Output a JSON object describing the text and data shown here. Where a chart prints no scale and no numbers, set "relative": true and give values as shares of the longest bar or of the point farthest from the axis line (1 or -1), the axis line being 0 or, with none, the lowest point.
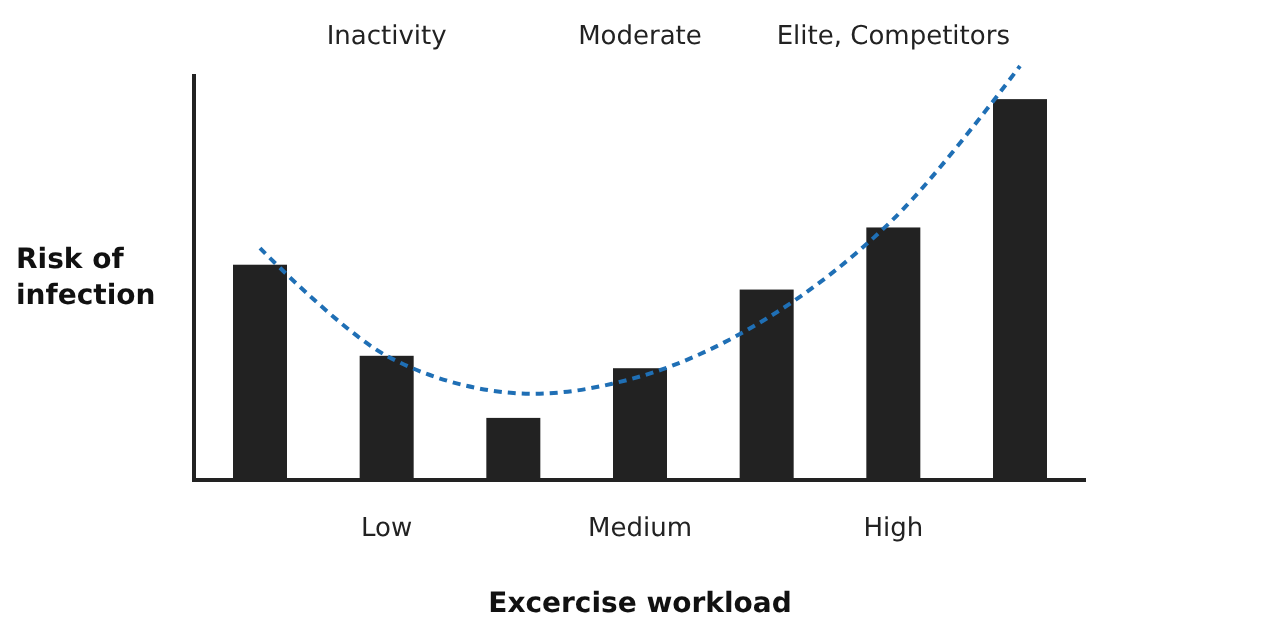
{
  "chart_data": {
    "type": "bar",
    "relative": true,
    "xlabel": "Excercise workload",
    "ylabel": "Risk of\ninfection",
    "categories": [
      null,
      "Low",
      null,
      "Medium",
      null,
      "High",
      null
    ],
    "annotations": [
      "Inactivity",
      "Moderate",
      "Elite, Competitors"
    ],
    "series": [
      {
        "color": "#222222",
        "values": [
          0.52,
          0.3,
          0.15,
          0.27,
          0.46,
          0.61,
          0.92
        ]
      },
      {
        "type": "line",
        "color": "#1f6fb5",
        "line_style": "dashed",
        "values": [
          0.56,
          0.3,
          0.21,
          0.25,
          0.39,
          0.63,
          1
        ]
      }
    ]
  }
}
